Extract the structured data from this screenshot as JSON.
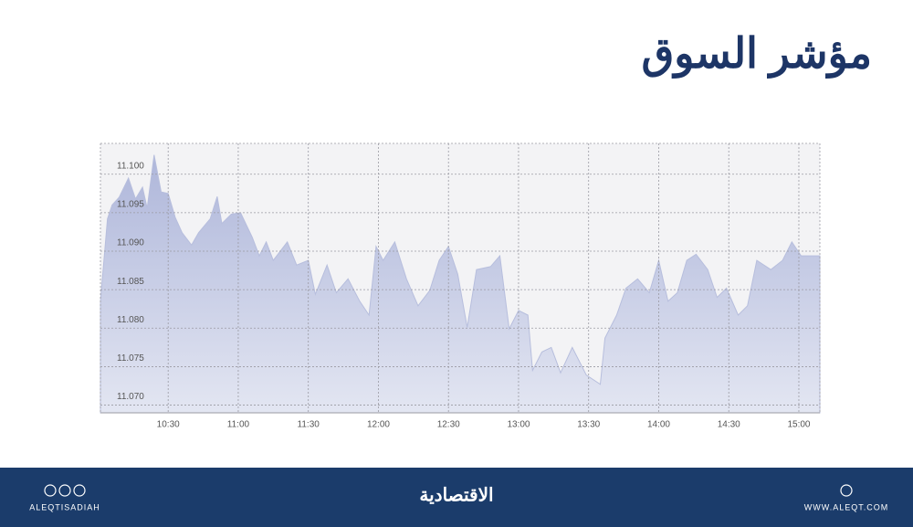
{
  "chart_data": {
    "type": "area",
    "title": "مؤشر السوق",
    "x": [
      "10:01",
      "10:04",
      "10:06",
      "10:09",
      "10:13",
      "10:16",
      "10:19",
      "10:21",
      "10:24",
      "10:27",
      "10:30",
      "10:33",
      "10:36",
      "10:40",
      "10:43",
      "10:48",
      "10:51",
      "10:53",
      "10:57",
      "11:01",
      "11:06",
      "11:09",
      "11:12",
      "11:15",
      "11:21",
      "11:25",
      "11:30",
      "11:33",
      "11:38",
      "11:42",
      "11:47",
      "11:52",
      "11:56",
      "11:59",
      "12:02",
      "12:07",
      "12:12",
      "12:17",
      "12:22",
      "12:26",
      "12:30",
      "12:34",
      "12:38",
      "12:42",
      "12:48",
      "12:52",
      "12:56",
      "13:00",
      "13:04",
      "13:06",
      "13:10",
      "13:14",
      "13:18",
      "13:23",
      "13:29",
      "13:35",
      "13:37",
      "13:42",
      "13:46",
      "13:51",
      "13:56",
      "14:00",
      "14:04",
      "14:08",
      "14:12",
      "14:16",
      "14:21",
      "14:25",
      "14:29",
      "14:34",
      "14:38",
      "14:42",
      "14:48",
      "14:53",
      "14:57",
      "15:01",
      "15:09"
    ],
    "values": [
      11.0835,
      11.0942,
      11.096,
      11.097,
      11.0995,
      11.0968,
      11.0983,
      11.0956,
      11.1025,
      11.0977,
      11.0975,
      11.0944,
      11.0924,
      11.0908,
      11.0924,
      11.0942,
      11.0971,
      11.0936,
      11.0948,
      11.095,
      11.0918,
      11.0894,
      11.0912,
      11.0888,
      11.0912,
      11.0882,
      11.0888,
      11.0844,
      11.0882,
      11.0846,
      11.0864,
      11.0835,
      11.0817,
      11.0906,
      11.0888,
      11.0912,
      11.0864,
      11.0829,
      11.0849,
      11.0888,
      11.0906,
      11.087,
      11.0801,
      11.0876,
      11.088,
      11.0894,
      11.0799,
      11.0823,
      11.0817,
      11.0745,
      11.0769,
      11.0775,
      11.0742,
      11.0775,
      11.0739,
      11.0727,
      11.0787,
      11.0817,
      11.0852,
      11.0864,
      11.0846,
      11.0888,
      11.0835,
      11.0846,
      11.0888,
      11.0896,
      11.0876,
      11.084,
      11.0852,
      11.0817,
      11.0829,
      11.0888,
      11.0876,
      11.0888,
      11.0912,
      11.0894,
      11.0894
    ],
    "color": "#b7bedd",
    "xlim": [
      "10:01",
      "15:09"
    ],
    "xticks": [
      "10:30",
      "11:00",
      "11:30",
      "12:00",
      "12:30",
      "13:00",
      "13:30",
      "14:00",
      "14:30",
      "15:00"
    ],
    "ylim": [
      11.069,
      11.104
    ],
    "yticks": [
      {
        "value": 11.07,
        "label": "11.070"
      },
      11.075,
      {
        "value": 11.08,
        "label": "11.080"
      },
      11.085,
      {
        "value": 11.09,
        "label": "11.090"
      },
      11.095,
      {
        "value": 11.1,
        "label": "11.100"
      }
    ],
    "grid": true
  },
  "footer": {
    "handle": "ALEQTISADIAH",
    "brand": "الاقتصادية",
    "website": "WWW.ALEQT.COM"
  }
}
